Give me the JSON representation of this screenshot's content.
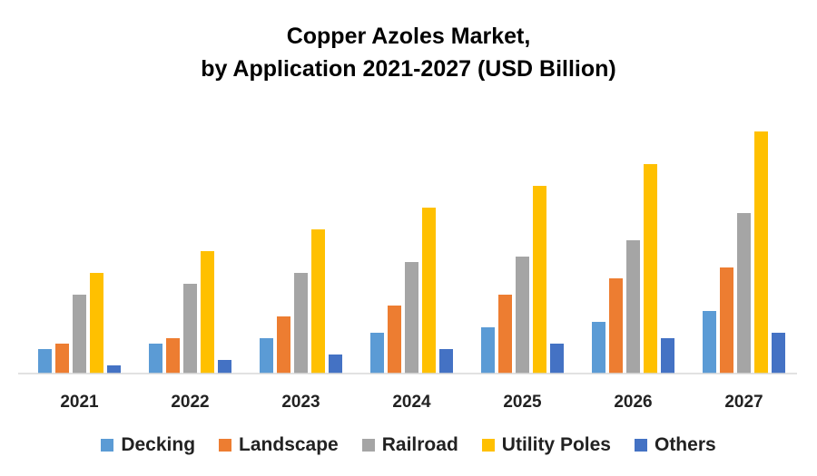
{
  "chart_data": {
    "type": "bar",
    "title": "Copper Azoles Market,",
    "subtitle": "by Application 2021-2027 (USD Billion)",
    "categories": [
      "2021",
      "2022",
      "2023",
      "2024",
      "2025",
      "2026",
      "2027"
    ],
    "series": [
      {
        "name": "Decking",
        "color": "#5B9BD5",
        "values": [
          0.45,
          0.55,
          0.65,
          0.75,
          0.85,
          0.95,
          1.15
        ]
      },
      {
        "name": "Landscape",
        "color": "#ED7D31",
        "values": [
          0.55,
          0.65,
          1.05,
          1.25,
          1.45,
          1.75,
          1.95
        ]
      },
      {
        "name": "Railroad",
        "color": "#A5A5A5",
        "values": [
          1.45,
          1.65,
          1.85,
          2.05,
          2.15,
          2.45,
          2.95
        ]
      },
      {
        "name": "Utility Poles",
        "color": "#FFC000",
        "values": [
          1.85,
          2.25,
          2.65,
          3.05,
          3.45,
          3.85,
          4.45
        ]
      },
      {
        "name": "Others",
        "color": "#4472C4",
        "values": [
          0.15,
          0.25,
          0.35,
          0.45,
          0.55,
          0.65,
          0.75
        ]
      }
    ],
    "xlabel": "",
    "ylabel": "",
    "ylim": [
      0,
      4.5
    ],
    "grid": false,
    "legend": "bottom"
  }
}
